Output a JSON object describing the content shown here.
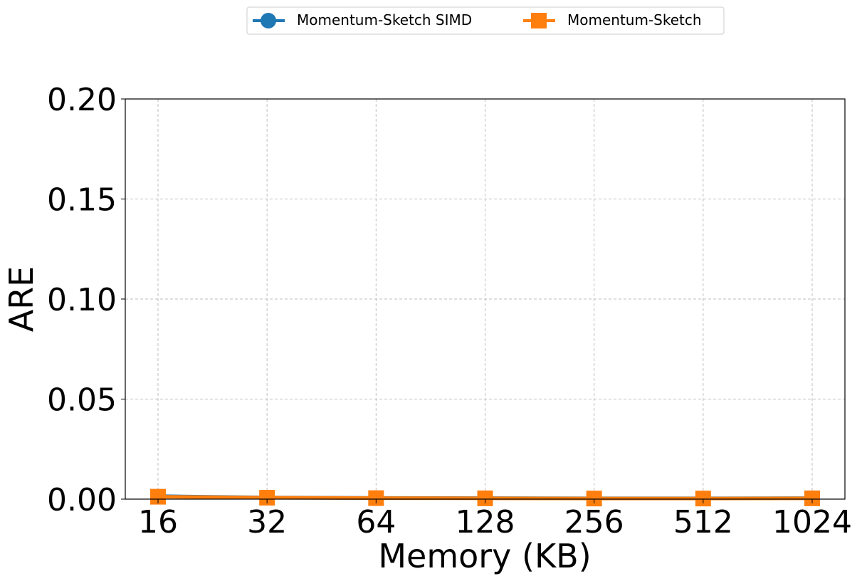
{
  "chart_data": {
    "type": "line",
    "xlabel": "Memory (KB)",
    "ylabel": "ARE",
    "categories": [
      "16",
      "32",
      "64",
      "128",
      "256",
      "512",
      "1024"
    ],
    "ylim": [
      0,
      0.2
    ],
    "yticks": [
      "0.00",
      "0.05",
      "0.10",
      "0.15",
      "0.20"
    ],
    "ytick_values": [
      0,
      0.05,
      0.1,
      0.15,
      0.2
    ],
    "grid": true,
    "legend_position": "top-center",
    "series": [
      {
        "name": "Momentum-Sketch SIMD",
        "marker": "circle",
        "color": "#1f77b4",
        "values": [
          0.0015,
          0.0008,
          0.0006,
          0.0005,
          0.0004,
          0.0004,
          0.0005
        ]
      },
      {
        "name": "Momentum-Sketch",
        "marker": "square",
        "color": "#ff7f0e",
        "values": [
          0.0012,
          0.0007,
          0.0005,
          0.0004,
          0.0003,
          0.0003,
          0.0004
        ]
      }
    ]
  }
}
